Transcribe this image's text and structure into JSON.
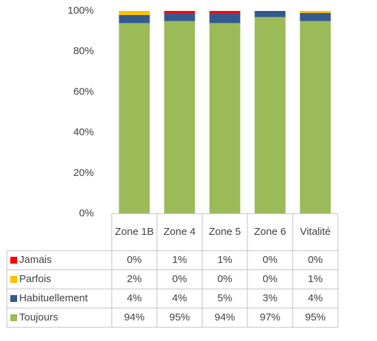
{
  "chart_data": {
    "type": "stacked_bar",
    "categories": [
      "Zone 1B",
      "Zone 4",
      "Zone 5",
      "Zone 6",
      "Vitalité"
    ],
    "series": [
      {
        "name": "Jamais",
        "color": "#ff0000",
        "values": [
          0,
          1,
          1,
          0,
          0
        ],
        "value_labels": [
          "0%",
          "1%",
          "1%",
          "0%",
          "0%"
        ]
      },
      {
        "name": "Parfois",
        "color": "#ffc000",
        "values": [
          2,
          0,
          0,
          0,
          1
        ],
        "value_labels": [
          "2%",
          "0%",
          "0%",
          "0%",
          "1%"
        ]
      },
      {
        "name": "Habituellement",
        "color": "#34598f",
        "values": [
          4,
          4,
          5,
          3,
          4
        ],
        "value_labels": [
          "4%",
          "4%",
          "5%",
          "3%",
          "4%"
        ]
      },
      {
        "name": "Toujours",
        "color": "#9bbb59",
        "values": [
          94,
          95,
          94,
          97,
          95
        ],
        "value_labels": [
          "94%",
          "95%",
          "94%",
          "97%",
          "95%"
        ]
      }
    ],
    "ylim": [
      0,
      100
    ],
    "yticks": [
      {
        "value": 0,
        "label": "0%"
      },
      {
        "value": 20,
        "label": "20%"
      },
      {
        "value": 40,
        "label": "40%"
      },
      {
        "value": 60,
        "label": "60%"
      },
      {
        "value": 80,
        "label": "80%"
      },
      {
        "value": 100,
        "label": "100%"
      }
    ]
  }
}
